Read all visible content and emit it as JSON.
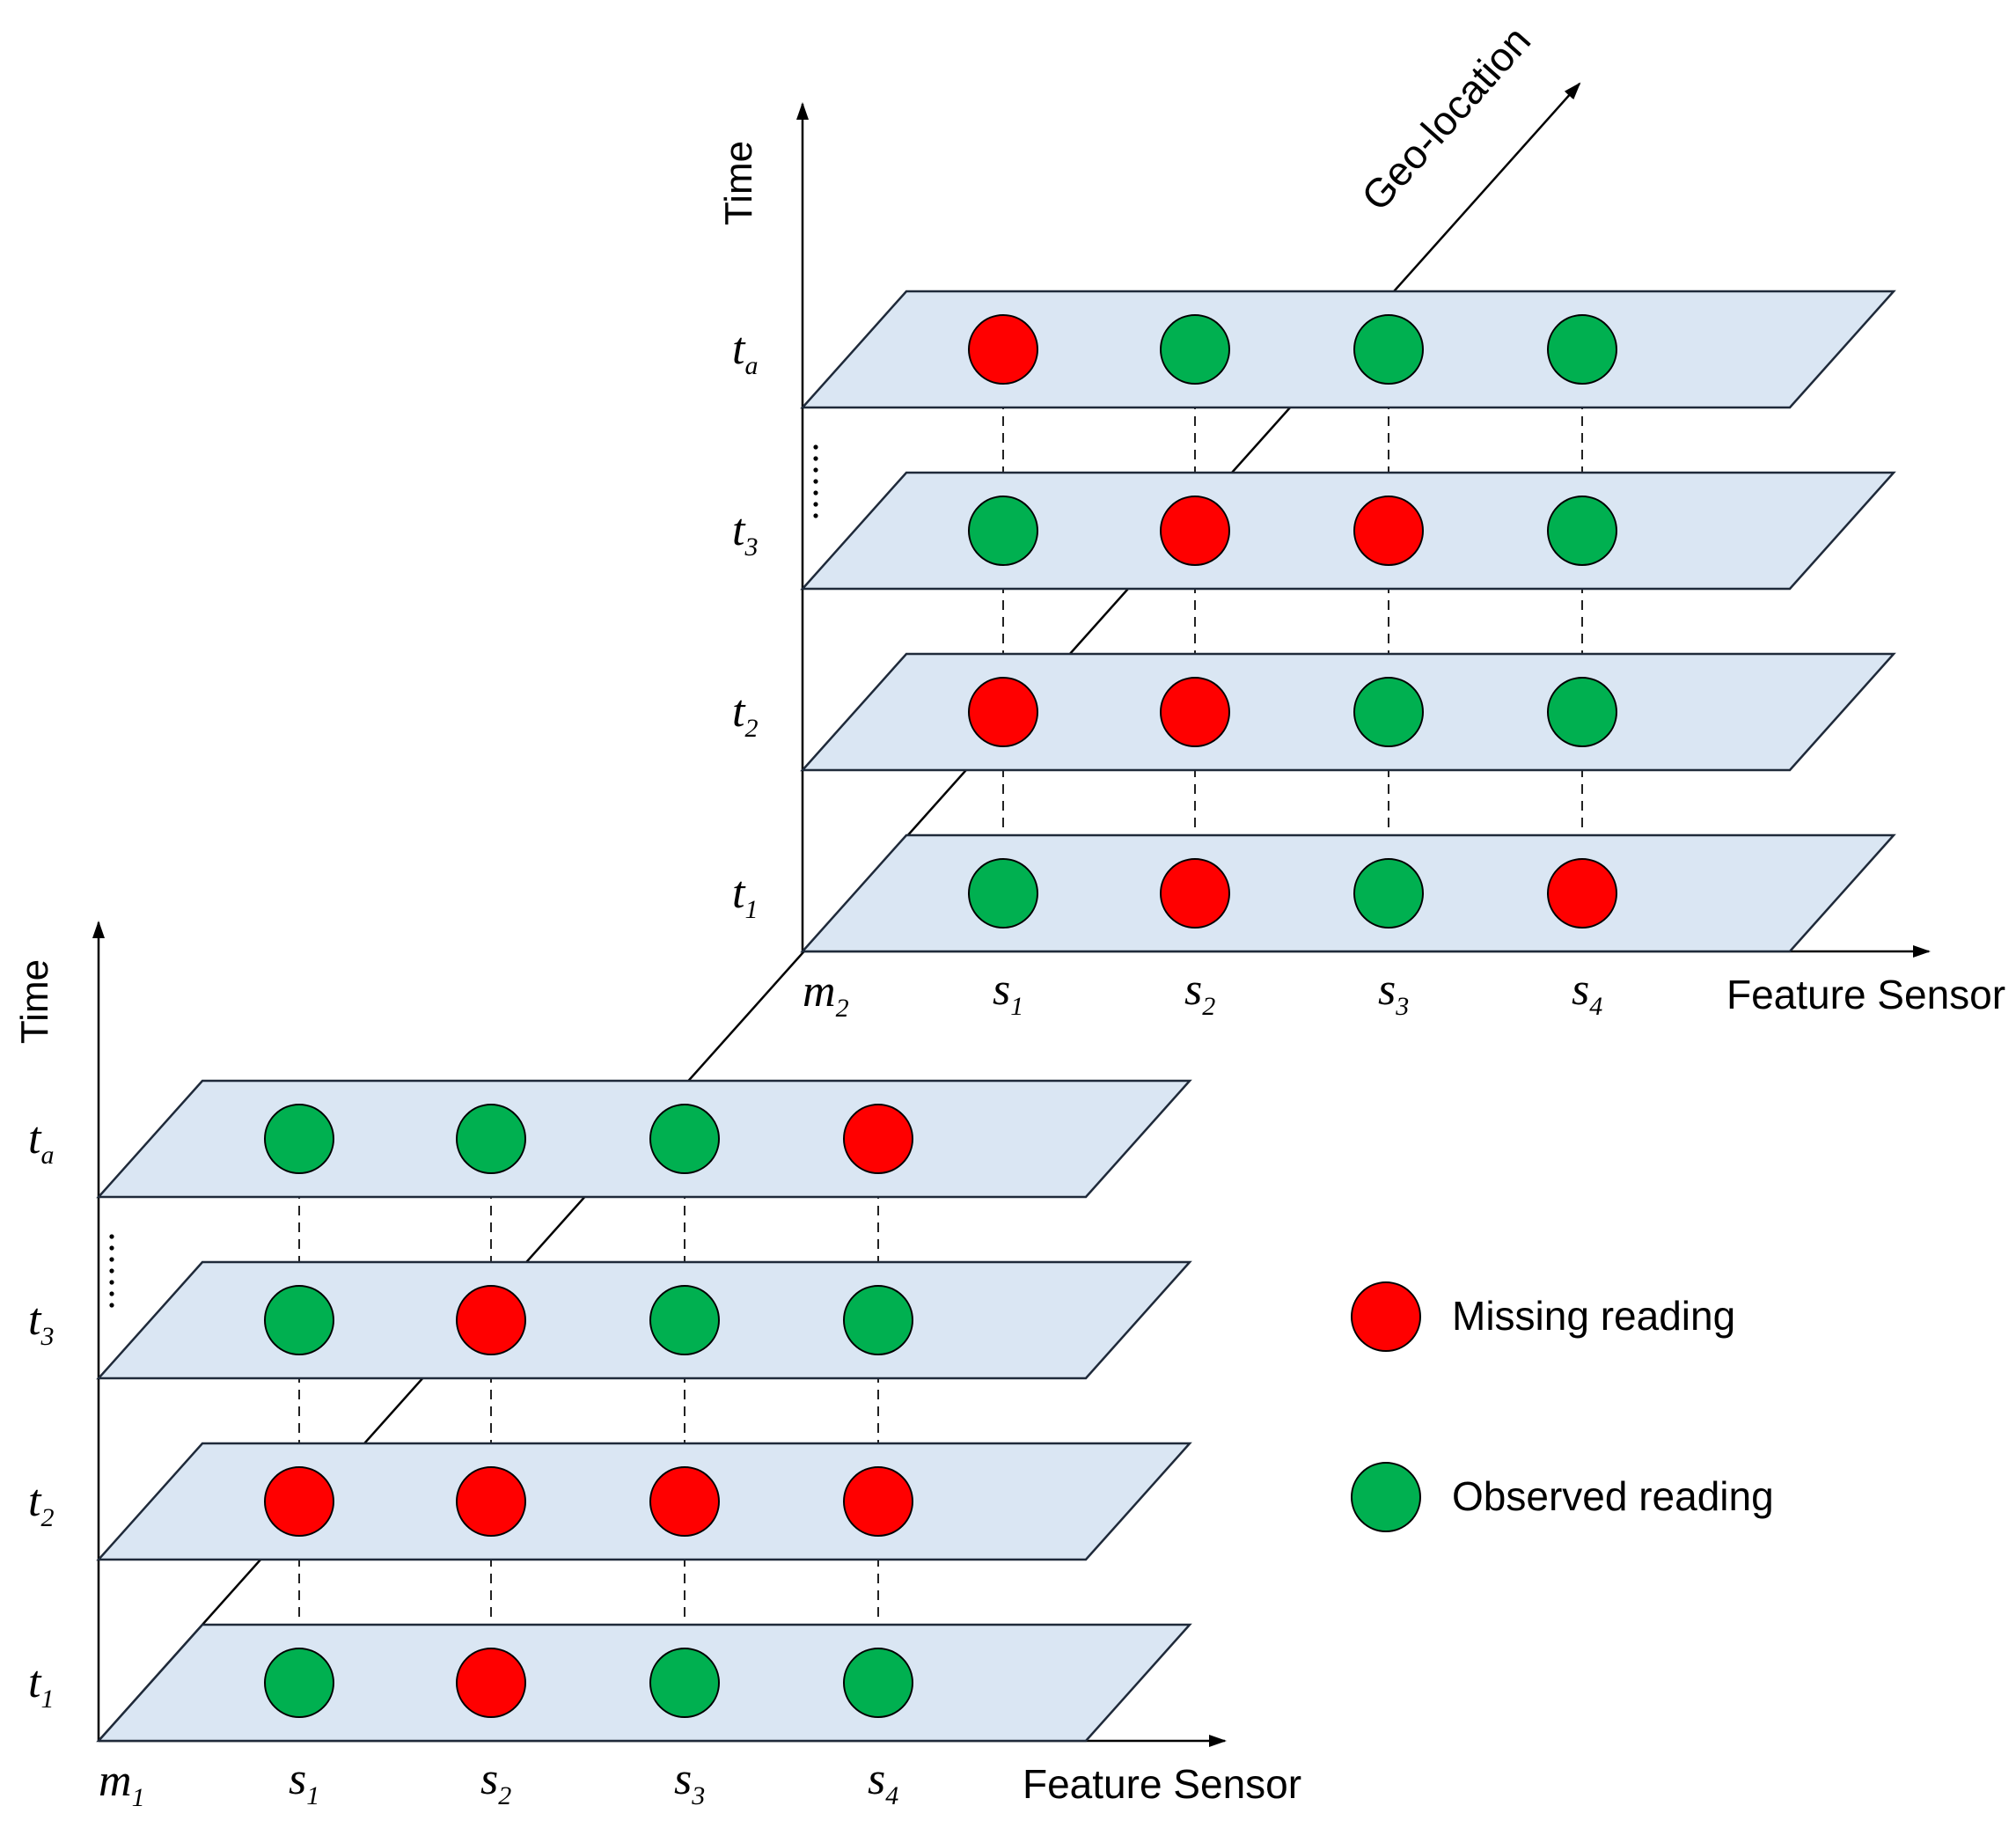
{
  "axes": {
    "time_label": "Time",
    "feature_label": "Feature Sensor",
    "geo_label": "Geo-location"
  },
  "legend": {
    "missing": {
      "label": "Missing reading",
      "color": "#ff0000"
    },
    "observed": {
      "label": "Observed reading",
      "color": "#00b050"
    }
  },
  "location_symbol": "m",
  "time_symbol": "t",
  "sensor_symbol": "s",
  "sensors": [
    {
      "letter": "s",
      "sub": "1"
    },
    {
      "letter": "s",
      "sub": "2"
    },
    {
      "letter": "s",
      "sub": "3"
    },
    {
      "letter": "s",
      "sub": "4"
    }
  ],
  "locations": [
    {
      "id": "m1",
      "label": {
        "letter": "m",
        "sub": "1"
      },
      "time_slices": [
        {
          "label": {
            "letter": "t",
            "sub": "1"
          },
          "readings": [
            "observed",
            "missing",
            "observed",
            "observed"
          ]
        },
        {
          "label": {
            "letter": "t",
            "sub": "2"
          },
          "readings": [
            "missing",
            "missing",
            "missing",
            "missing"
          ]
        },
        {
          "label": {
            "letter": "t",
            "sub": "3"
          },
          "readings": [
            "observed",
            "missing",
            "observed",
            "observed"
          ]
        },
        {
          "label": {
            "letter": "t",
            "sub": "a"
          },
          "readings": [
            "observed",
            "observed",
            "observed",
            "missing"
          ]
        }
      ]
    },
    {
      "id": "m2",
      "label": {
        "letter": "m",
        "sub": "2"
      },
      "time_slices": [
        {
          "label": {
            "letter": "t",
            "sub": "1"
          },
          "readings": [
            "observed",
            "missing",
            "observed",
            "missing"
          ]
        },
        {
          "label": {
            "letter": "t",
            "sub": "2"
          },
          "readings": [
            "missing",
            "missing",
            "observed",
            "observed"
          ]
        },
        {
          "label": {
            "letter": "t",
            "sub": "3"
          },
          "readings": [
            "observed",
            "missing",
            "missing",
            "observed"
          ]
        },
        {
          "label": {
            "letter": "t",
            "sub": "a"
          },
          "readings": [
            "missing",
            "observed",
            "observed",
            "observed"
          ]
        }
      ]
    }
  ]
}
